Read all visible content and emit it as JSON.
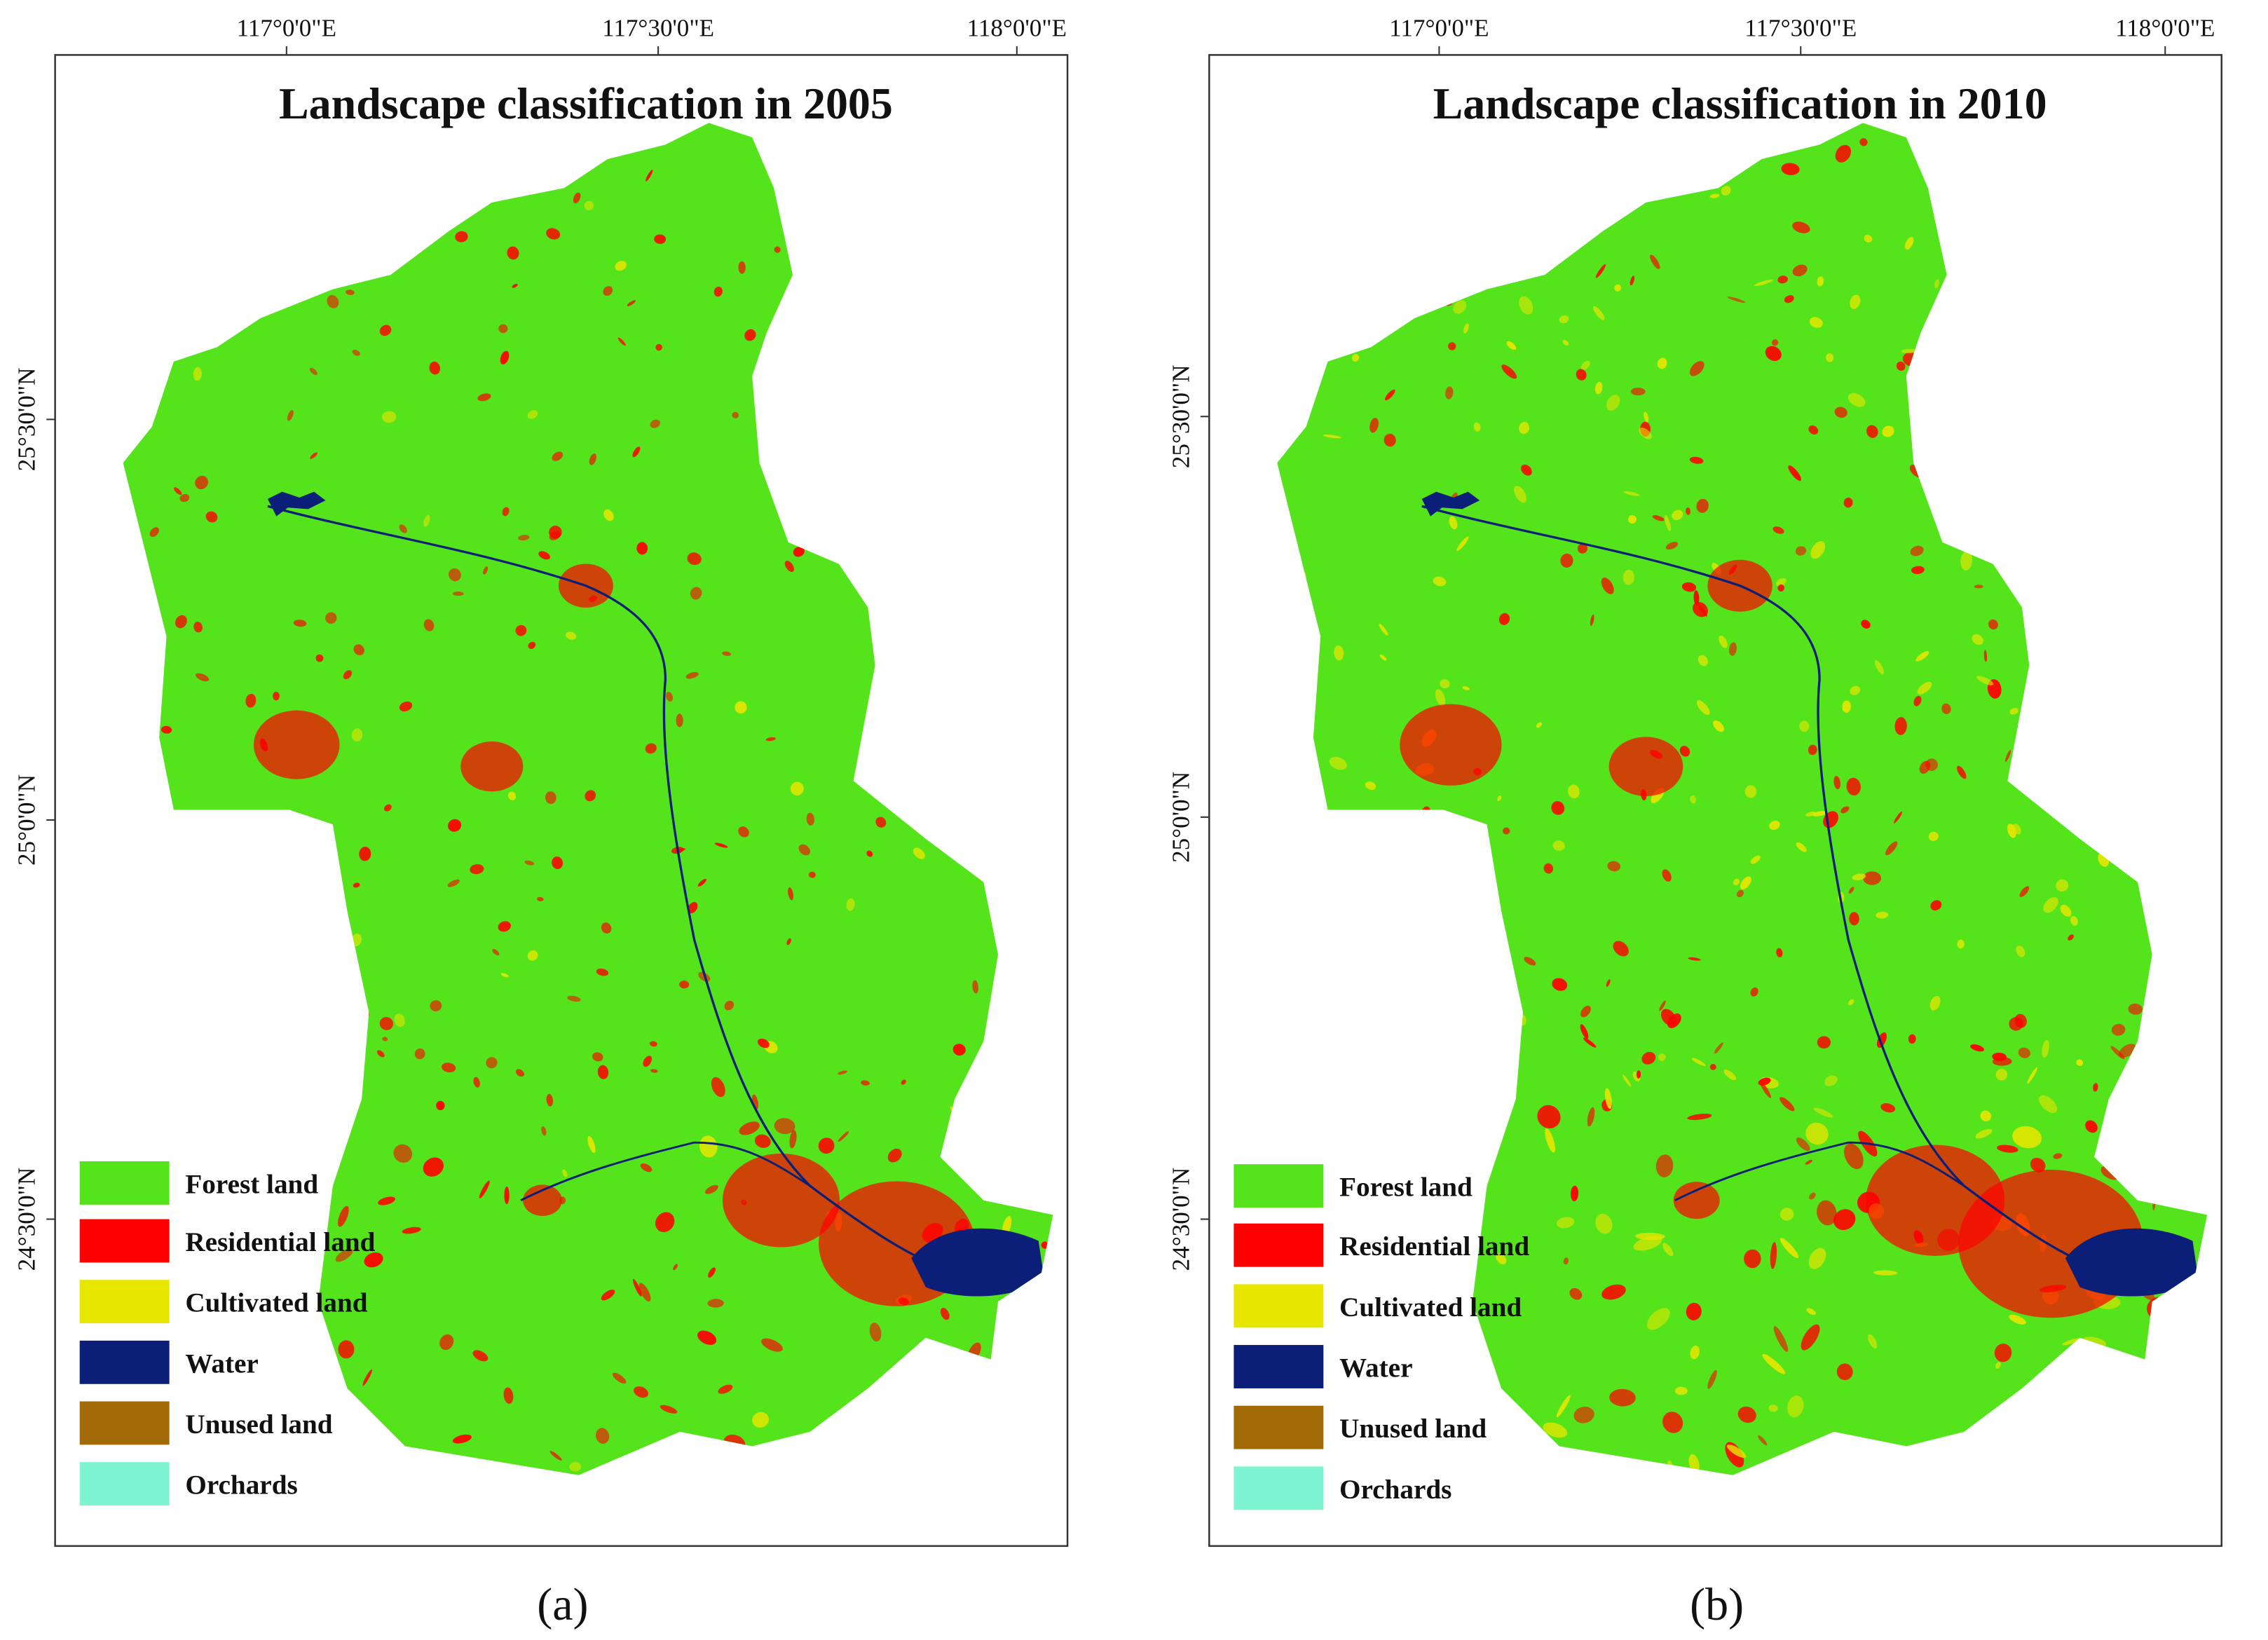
{
  "panels": [
    {
      "title": "Landscape classification in 2005",
      "longitude_labels": [
        "117°0'0\"E",
        "117°30'0\"E",
        "118°0'0\"E"
      ],
      "latitude_labels": [
        "25°30'0\"N",
        "25°0'0\"N",
        "24°30'0\"N"
      ],
      "legend": [
        {
          "label": "Forest land",
          "color": "#55e41c"
        },
        {
          "label": "Residential land",
          "color": "#ff0000"
        },
        {
          "label": "Cultivated land",
          "color": "#e6e600"
        },
        {
          "label": "Water",
          "color": "#0c1f78"
        },
        {
          "label": "Unused land",
          "color": "#a36b08"
        },
        {
          "label": "Orchards",
          "color": "#7ff4d0"
        }
      ],
      "caption": "(a)"
    },
    {
      "title": "Landscape classification in 2010",
      "longitude_labels": [
        "117°0'0\"E",
        "117°30'0\"E",
        "118°0'0\"E"
      ],
      "latitude_labels": [
        "25°30'0\"N",
        "25°0'0\"N",
        "24°30'0\"N"
      ],
      "legend": [
        {
          "label": "Forest land",
          "color": "#55e41c"
        },
        {
          "label": "Residential land",
          "color": "#ff0000"
        },
        {
          "label": "Cultivated land",
          "color": "#e6e600"
        },
        {
          "label": "Water",
          "color": "#0c1f78"
        },
        {
          "label": "Unused land",
          "color": "#a36b08"
        },
        {
          "label": "Orchards",
          "color": "#7ff4d0"
        }
      ],
      "caption": "(b)"
    }
  ]
}
